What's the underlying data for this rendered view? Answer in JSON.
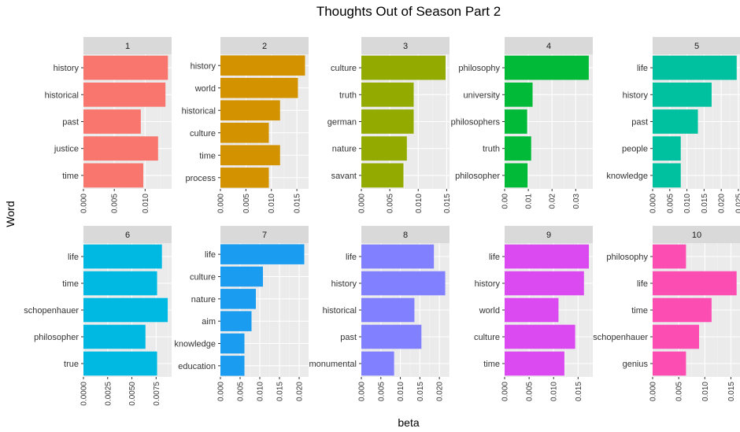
{
  "chart_data": {
    "type": "bar",
    "title": "Thoughts Out of Season Part 2",
    "xlabel": "beta",
    "ylabel": "Word",
    "orientation": "horizontal",
    "grid": true,
    "panels": [
      {
        "label": "1",
        "color": "#F8766D",
        "categories": [
          "history",
          "historical",
          "past",
          "justice",
          "time"
        ],
        "values": [
          0.0137,
          0.0133,
          0.0093,
          0.0121,
          0.0097
        ],
        "xlim": [
          0,
          0.0143
        ],
        "xticks": [
          0.0,
          0.005,
          0.01
        ],
        "xtick_labels": [
          "0.000",
          "0.005",
          "0.010"
        ]
      },
      {
        "label": "2",
        "color": "#D39200",
        "categories": [
          "history",
          "world",
          "historical",
          "culture",
          "time",
          "process"
        ],
        "values": [
          0.0166,
          0.0152,
          0.0117,
          0.0095,
          0.0117,
          0.0095
        ],
        "xlim": [
          0,
          0.0173
        ],
        "xticks": [
          0.0,
          0.005,
          0.01,
          0.015
        ],
        "xtick_labels": [
          "0.000",
          "0.005",
          "0.010",
          "0.015"
        ]
      },
      {
        "label": "3",
        "color": "#93AA00",
        "categories": [
          "culture",
          "truth",
          "german",
          "nature",
          "savant"
        ],
        "values": [
          0.0148,
          0.0092,
          0.0092,
          0.008,
          0.0074
        ],
        "xlim": [
          0,
          0.0155
        ],
        "xticks": [
          0.0,
          0.005,
          0.01,
          0.015
        ],
        "xtick_labels": [
          "0.000",
          "0.005",
          "0.010",
          "0.015"
        ]
      },
      {
        "label": "4",
        "color": "#00BA38",
        "categories": [
          "philosophy",
          "university",
          "philosophers",
          "truth",
          "philosopher"
        ],
        "values": [
          0.0355,
          0.0118,
          0.0095,
          0.0112,
          0.0097
        ],
        "xlim": [
          0,
          0.0372
        ],
        "xticks": [
          0.0,
          0.01,
          0.02,
          0.03
        ],
        "xtick_labels": [
          "0.00",
          "0.01",
          "0.02",
          "0.03"
        ]
      },
      {
        "label": "5",
        "color": "#00C19F",
        "categories": [
          "life",
          "history",
          "past",
          "people",
          "knowledge"
        ],
        "values": [
          0.0245,
          0.0172,
          0.0132,
          0.0082,
          0.0082
        ],
        "xlim": [
          0,
          0.0257
        ],
        "xticks": [
          0.0,
          0.005,
          0.01,
          0.015,
          0.02,
          0.025
        ],
        "xtick_labels": [
          "0.000",
          "0.005",
          "0.010",
          "0.015",
          "0.020",
          "0.025"
        ]
      },
      {
        "label": "6",
        "color": "#00B9E3",
        "categories": [
          "life",
          "time",
          "schopenhauer",
          "philosopher",
          "true"
        ],
        "values": [
          0.0081,
          0.0076,
          0.0087,
          0.0064,
          0.0076
        ],
        "xlim": [
          0,
          0.0091
        ],
        "xticks": [
          0.0,
          0.0025,
          0.005,
          0.0075
        ],
        "xtick_labels": [
          "0.0000",
          "0.0025",
          "0.0050",
          "0.0075"
        ]
      },
      {
        "label": "7",
        "color": "#1A9CF0",
        "categories": [
          "life",
          "culture",
          "nature",
          "aim",
          "knowledge",
          "education"
        ],
        "values": [
          0.0213,
          0.0108,
          0.009,
          0.0079,
          0.0061,
          0.0061
        ],
        "xlim": [
          0,
          0.0224
        ],
        "xticks": [
          0.0,
          0.005,
          0.01,
          0.015,
          0.02
        ],
        "xtick_labels": [
          "0.000",
          "0.005",
          "0.010",
          "0.015",
          "0.020"
        ]
      },
      {
        "label": "8",
        "color": "#8181FF",
        "categories": [
          "life",
          "history",
          "historical",
          "past",
          "monumental"
        ],
        "values": [
          0.0186,
          0.0215,
          0.0136,
          0.0154,
          0.0084
        ],
        "xlim": [
          0,
          0.0226
        ],
        "xticks": [
          0.0,
          0.005,
          0.01,
          0.015,
          0.02
        ],
        "xtick_labels": [
          "0.000",
          "0.005",
          "0.010",
          "0.015",
          "0.020"
        ]
      },
      {
        "label": "9",
        "color": "#DB4AF0",
        "categories": [
          "life",
          "history",
          "world",
          "culture",
          "time"
        ],
        "values": [
          0.0172,
          0.0162,
          0.011,
          0.0144,
          0.0122
        ],
        "xlim": [
          0,
          0.018
        ],
        "xticks": [
          0.0,
          0.005,
          0.01,
          0.015
        ],
        "xtick_labels": [
          "0.000",
          "0.005",
          "0.010",
          "0.015"
        ]
      },
      {
        "label": "10",
        "color": "#FB4DB2",
        "categories": [
          "philosophy",
          "life",
          "time",
          "schopenhauer",
          "genius"
        ],
        "values": [
          0.0064,
          0.0161,
          0.0113,
          0.0089,
          0.0064
        ],
        "xlim": [
          0,
          0.0169
        ],
        "xticks": [
          0.0,
          0.005,
          0.01,
          0.015
        ],
        "xtick_labels": [
          "0.000",
          "0.005",
          "0.010",
          "0.015"
        ]
      }
    ]
  }
}
